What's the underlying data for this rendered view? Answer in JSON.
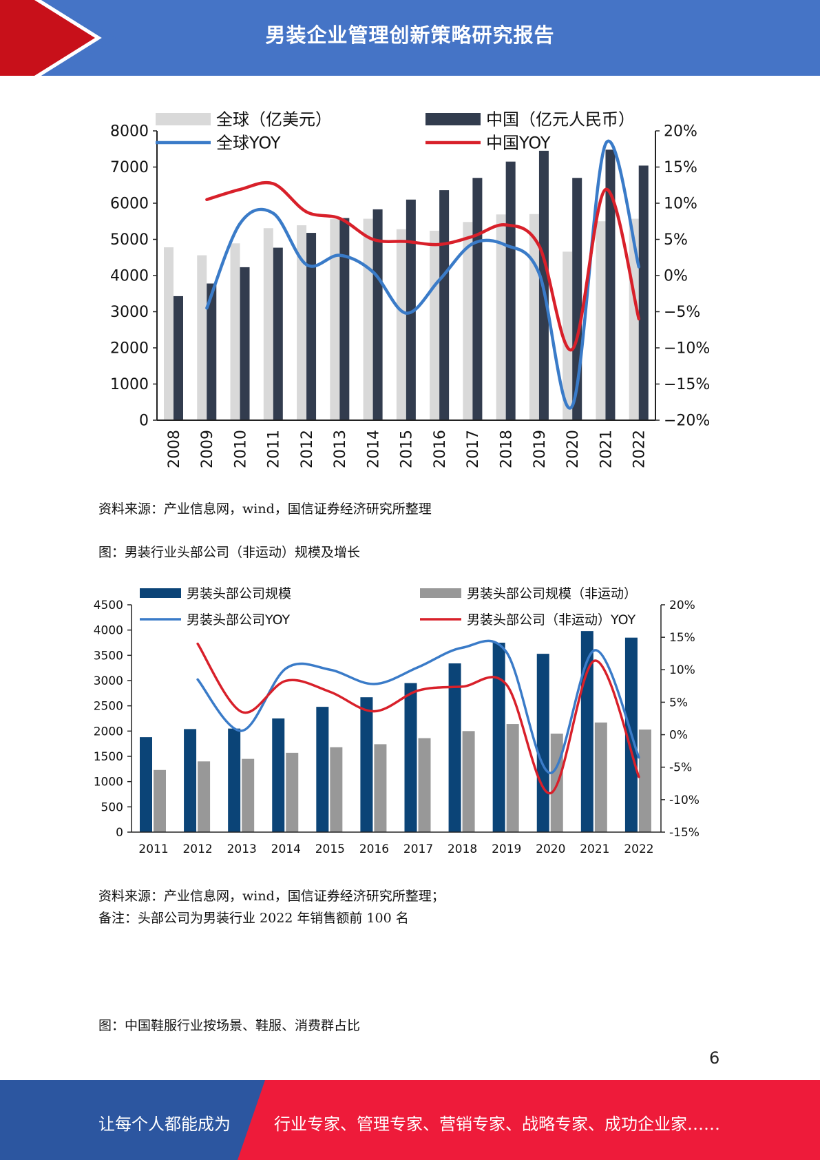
{
  "header": {
    "title": "男装企业管理创新策略研究报告"
  },
  "colors": {
    "header_blue": "#4574c6",
    "header_red": "#c8101a",
    "footer_blue": "#2c56a0",
    "footer_red": "#ee1b3a"
  },
  "chart_data": [
    {
      "type": "bar",
      "categories": [
        "2008",
        "2009",
        "2010",
        "2011",
        "2012",
        "2013",
        "2014",
        "2015",
        "2016",
        "2017",
        "2018",
        "2019",
        "2020",
        "2021",
        "2022"
      ],
      "series": [
        {
          "name": "全球（亿美元）",
          "kind": "bar",
          "axis": "left",
          "color": "#d9d9d9",
          "values": [
            4780,
            4560,
            4890,
            5310,
            5390,
            5560,
            5570,
            5280,
            5240,
            5480,
            5690,
            5700,
            4660,
            5500,
            5570
          ]
        },
        {
          "name": "中国（亿元人民币）",
          "kind": "bar",
          "axis": "left",
          "color": "#323c4e",
          "values": [
            3430,
            3780,
            4230,
            4770,
            5180,
            5590,
            5830,
            6100,
            6360,
            6700,
            7150,
            7450,
            6700,
            7480,
            7040
          ]
        },
        {
          "name": "全球YOY",
          "kind": "line",
          "axis": "right",
          "color": "#3a7bc8",
          "values": [
            null,
            -4.5,
            7.2,
            8.6,
            1.5,
            2.8,
            0.5,
            -5.2,
            -0.6,
            4.4,
            4.2,
            0.3,
            -18.0,
            18.2,
            1.2
          ]
        },
        {
          "name": "中国YOY",
          "kind": "line",
          "axis": "right",
          "color": "#d8202a",
          "values": [
            null,
            10.5,
            11.9,
            12.7,
            8.8,
            7.9,
            5.0,
            4.7,
            4.3,
            5.4,
            7.0,
            4.1,
            -10.2,
            11.9,
            -6.0
          ]
        }
      ],
      "y_left": {
        "min": 0,
        "max": 8000,
        "ticks": [
          "0",
          "1000",
          "2000",
          "3000",
          "4000",
          "5000",
          "6000",
          "7000",
          "8000"
        ]
      },
      "y_right": {
        "min": -20,
        "max": 20,
        "ticks": [
          "−20%",
          "−15%",
          "−10%",
          "−5%",
          "0%",
          "5%",
          "10%",
          "15%",
          "20%"
        ]
      },
      "legend_position": "top",
      "grid": false
    },
    {
      "type": "bar",
      "categories": [
        "2011",
        "2012",
        "2013",
        "2014",
        "2015",
        "2016",
        "2017",
        "2018",
        "2019",
        "2020",
        "2021",
        "2022"
      ],
      "series": [
        {
          "name": "男装头部公司规模",
          "kind": "bar",
          "axis": "left",
          "color": "#0b4477",
          "values": [
            1880,
            2040,
            2050,
            2250,
            2480,
            2670,
            2950,
            3340,
            3750,
            3530,
            3980,
            3850
          ]
        },
        {
          "name": "男装头部公司规模（非运动）",
          "kind": "bar",
          "axis": "left",
          "color": "#989898",
          "values": [
            1230,
            1400,
            1450,
            1570,
            1680,
            1740,
            1860,
            2000,
            2140,
            1950,
            2170,
            2030
          ]
        },
        {
          "name": "男装头部公司YOY",
          "kind": "line",
          "axis": "right",
          "color": "#3a7bc8",
          "values": [
            null,
            8.5,
            0.6,
            10.2,
            10.0,
            7.8,
            10.4,
            13.4,
            12.7,
            -5.9,
            13.0,
            -3.5
          ]
        },
        {
          "name": "男装头部公司（非运动）YOY",
          "kind": "line",
          "axis": "right",
          "color": "#d8202a",
          "values": [
            null,
            14.0,
            3.5,
            8.3,
            6.6,
            3.6,
            6.8,
            7.4,
            7.7,
            -9.0,
            11.4,
            -6.5
          ]
        }
      ],
      "y_left": {
        "min": 0,
        "max": 4500,
        "ticks": [
          "0",
          "500",
          "1000",
          "1500",
          "2000",
          "2500",
          "3000",
          "3500",
          "4000",
          "4500"
        ]
      },
      "y_right": {
        "min": -15,
        "max": 20,
        "ticks": [
          "-15%",
          "-10%",
          "-5%",
          "0%",
          "5%",
          "10%",
          "15%",
          "20%"
        ]
      },
      "legend_position": "top",
      "grid": false
    }
  ],
  "captions": {
    "source1": "资料来源：产业信息网，wind，国信证券经济研究所整理",
    "figure2_title": "图：男装行业头部公司（非运动）规模及增长",
    "source2": "资料来源：产业信息网，wind，国信证券经济研究所整理；",
    "note2": "备注：头部公司为男装行业 2022 年销售额前 100 名",
    "figure3_title": "图：中国鞋服行业按场景、鞋服、消费群占比"
  },
  "page_number": "6",
  "footer": {
    "left_text": "让每个人都能成为",
    "right_text": "行业专家、管理专家、营销专家、战略专家、成功企业家……"
  }
}
